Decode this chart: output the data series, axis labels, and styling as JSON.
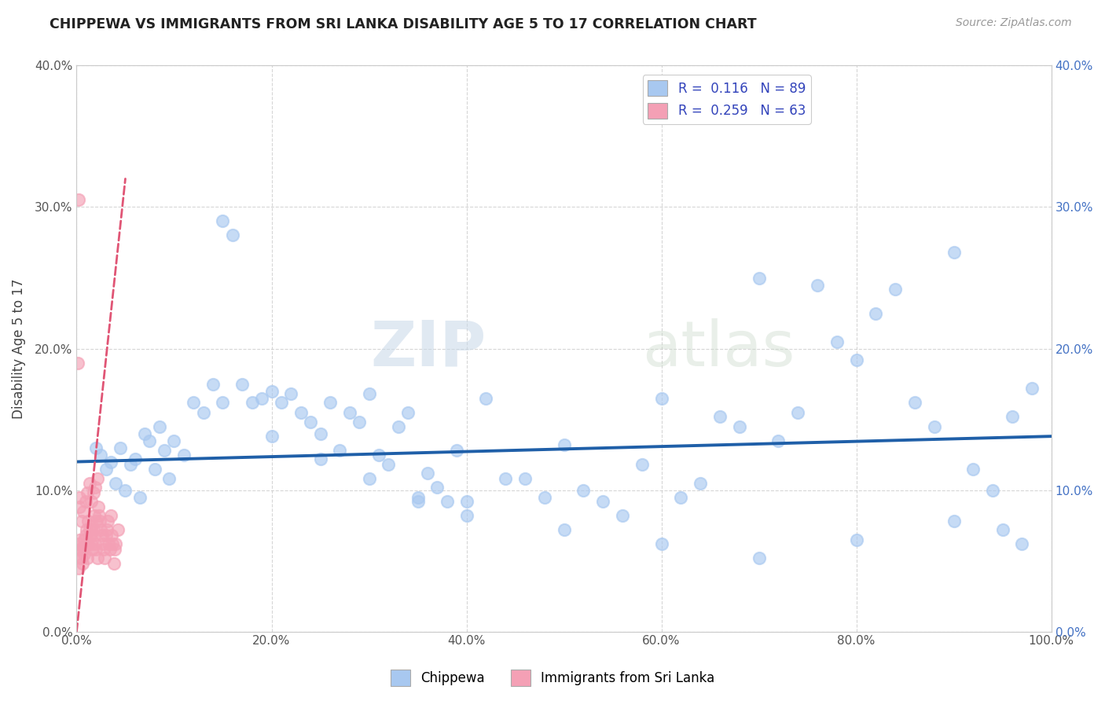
{
  "title": "CHIPPEWA VS IMMIGRANTS FROM SRI LANKA DISABILITY AGE 5 TO 17 CORRELATION CHART",
  "source": "Source: ZipAtlas.com",
  "ylabel": "Disability Age 5 to 17",
  "xlim": [
    0,
    1.0
  ],
  "ylim": [
    0,
    0.4
  ],
  "xtick_labels": [
    "0.0%",
    "20.0%",
    "40.0%",
    "60.0%",
    "80.0%",
    "100.0%"
  ],
  "xtick_vals": [
    0,
    0.2,
    0.4,
    0.6,
    0.8,
    1.0
  ],
  "ytick_labels": [
    "0.0%",
    "10.0%",
    "20.0%",
    "30.0%",
    "40.0%"
  ],
  "ytick_vals": [
    0,
    0.1,
    0.2,
    0.3,
    0.4
  ],
  "blue_R": 0.116,
  "blue_N": 89,
  "pink_R": 0.259,
  "pink_N": 63,
  "blue_color": "#a8c8f0",
  "pink_color": "#f4a0b5",
  "blue_line_color": "#1f5fa8",
  "pink_line_color": "#e05575",
  "watermark_zip": "ZIP",
  "watermark_atlas": "atlas",
  "legend_label_blue": "Chippewa",
  "legend_label_pink": "Immigrants from Sri Lanka",
  "ytick_color": "#4472c4",
  "blue_scatter_x": [
    0.02,
    0.025,
    0.03,
    0.035,
    0.04,
    0.045,
    0.05,
    0.055,
    0.06,
    0.065,
    0.07,
    0.075,
    0.08,
    0.085,
    0.09,
    0.095,
    0.1,
    0.11,
    0.12,
    0.13,
    0.14,
    0.15,
    0.16,
    0.17,
    0.18,
    0.19,
    0.2,
    0.21,
    0.22,
    0.23,
    0.24,
    0.25,
    0.26,
    0.27,
    0.28,
    0.29,
    0.3,
    0.31,
    0.32,
    0.33,
    0.34,
    0.35,
    0.36,
    0.37,
    0.38,
    0.39,
    0.4,
    0.42,
    0.44,
    0.46,
    0.48,
    0.5,
    0.52,
    0.54,
    0.56,
    0.58,
    0.6,
    0.62,
    0.64,
    0.66,
    0.68,
    0.7,
    0.72,
    0.74,
    0.76,
    0.78,
    0.8,
    0.82,
    0.84,
    0.86,
    0.88,
    0.9,
    0.92,
    0.94,
    0.96,
    0.98,
    0.15,
    0.2,
    0.25,
    0.3,
    0.35,
    0.4,
    0.5,
    0.6,
    0.7,
    0.8,
    0.9,
    0.95,
    0.97
  ],
  "blue_scatter_y": [
    0.13,
    0.125,
    0.115,
    0.12,
    0.105,
    0.13,
    0.1,
    0.118,
    0.122,
    0.095,
    0.14,
    0.135,
    0.115,
    0.145,
    0.128,
    0.108,
    0.135,
    0.125,
    0.162,
    0.155,
    0.175,
    0.29,
    0.28,
    0.175,
    0.162,
    0.165,
    0.17,
    0.162,
    0.168,
    0.155,
    0.148,
    0.14,
    0.162,
    0.128,
    0.155,
    0.148,
    0.108,
    0.125,
    0.118,
    0.145,
    0.155,
    0.095,
    0.112,
    0.102,
    0.092,
    0.128,
    0.092,
    0.165,
    0.108,
    0.108,
    0.095,
    0.132,
    0.1,
    0.092,
    0.082,
    0.118,
    0.165,
    0.095,
    0.105,
    0.152,
    0.145,
    0.25,
    0.135,
    0.155,
    0.245,
    0.205,
    0.192,
    0.225,
    0.242,
    0.162,
    0.145,
    0.268,
    0.115,
    0.1,
    0.152,
    0.172,
    0.162,
    0.138,
    0.122,
    0.168,
    0.092,
    0.082,
    0.072,
    0.062,
    0.052,
    0.065,
    0.078,
    0.072,
    0.062
  ],
  "pink_scatter_x": [
    0.002,
    0.003,
    0.004,
    0.005,
    0.006,
    0.007,
    0.008,
    0.009,
    0.01,
    0.011,
    0.012,
    0.013,
    0.014,
    0.015,
    0.016,
    0.017,
    0.018,
    0.019,
    0.02,
    0.021,
    0.022,
    0.023,
    0.024,
    0.025,
    0.026,
    0.027,
    0.028,
    0.029,
    0.03,
    0.031,
    0.032,
    0.033,
    0.034,
    0.035,
    0.036,
    0.037,
    0.038,
    0.039,
    0.04,
    0.042,
    0.003,
    0.005,
    0.007,
    0.009,
    0.011,
    0.013,
    0.015,
    0.017,
    0.019,
    0.021,
    0.002,
    0.004,
    0.006,
    0.008,
    0.01,
    0.012,
    0.014,
    0.016,
    0.018,
    0.02,
    0.001,
    0.002,
    0.003
  ],
  "pink_scatter_y": [
    0.062,
    0.065,
    0.058,
    0.052,
    0.048,
    0.06,
    0.055,
    0.068,
    0.062,
    0.052,
    0.078,
    0.072,
    0.068,
    0.062,
    0.058,
    0.072,
    0.068,
    0.062,
    0.058,
    0.052,
    0.088,
    0.082,
    0.078,
    0.072,
    0.068,
    0.062,
    0.058,
    0.052,
    0.068,
    0.072,
    0.078,
    0.062,
    0.058,
    0.082,
    0.068,
    0.062,
    0.048,
    0.058,
    0.062,
    0.072,
    0.095,
    0.078,
    0.085,
    0.092,
    0.098,
    0.105,
    0.092,
    0.098,
    0.102,
    0.108,
    0.045,
    0.052,
    0.058,
    0.065,
    0.072,
    0.062,
    0.068,
    0.075,
    0.082,
    0.078,
    0.19,
    0.305,
    0.088
  ],
  "blue_trend_x0": 0.0,
  "blue_trend_x1": 1.0,
  "blue_trend_y0": 0.12,
  "blue_trend_y1": 0.138,
  "pink_trend_x0": 0.0,
  "pink_trend_x1": 0.05,
  "pink_trend_y0": 0.0,
  "pink_trend_y1": 0.32
}
